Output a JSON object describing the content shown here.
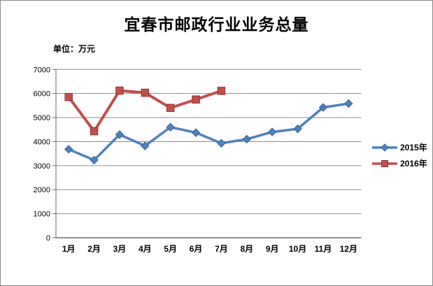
{
  "header": {
    "title": "宜春市邮政行业业务总量",
    "unit_label": "单位：万元"
  },
  "chart_data": {
    "type": "line",
    "title": "宜春市邮政行业业务总量",
    "xlabel": "",
    "ylabel": "单位：万元",
    "categories": [
      "1月",
      "2月",
      "3月",
      "4月",
      "5月",
      "6月",
      "7月",
      "8月",
      "9月",
      "10月",
      "11月",
      "12月"
    ],
    "series": [
      {
        "name": "2015年",
        "color": "#4F81BD",
        "marker": "diamond",
        "marker_edge": "#3A6494",
        "line_width": 3.5,
        "values": [
          3680,
          3230,
          4290,
          3820,
          4600,
          4370,
          3930,
          4100,
          4400,
          4530,
          5420,
          5580
        ]
      },
      {
        "name": "2016年",
        "color": "#C0504D",
        "marker": "square",
        "marker_edge": "#943634",
        "line_width": 4,
        "values": [
          5850,
          4430,
          6120,
          6030,
          5400,
          5750,
          6110
        ]
      }
    ],
    "ylim": [
      0,
      7000
    ],
    "yticks": [
      0,
      1000,
      2000,
      3000,
      4000,
      5000,
      6000,
      7000
    ],
    "grid": true,
    "gridline_color": "#8C8C8C",
    "axis_color": "#6B6B6B",
    "legend_position": "right"
  }
}
